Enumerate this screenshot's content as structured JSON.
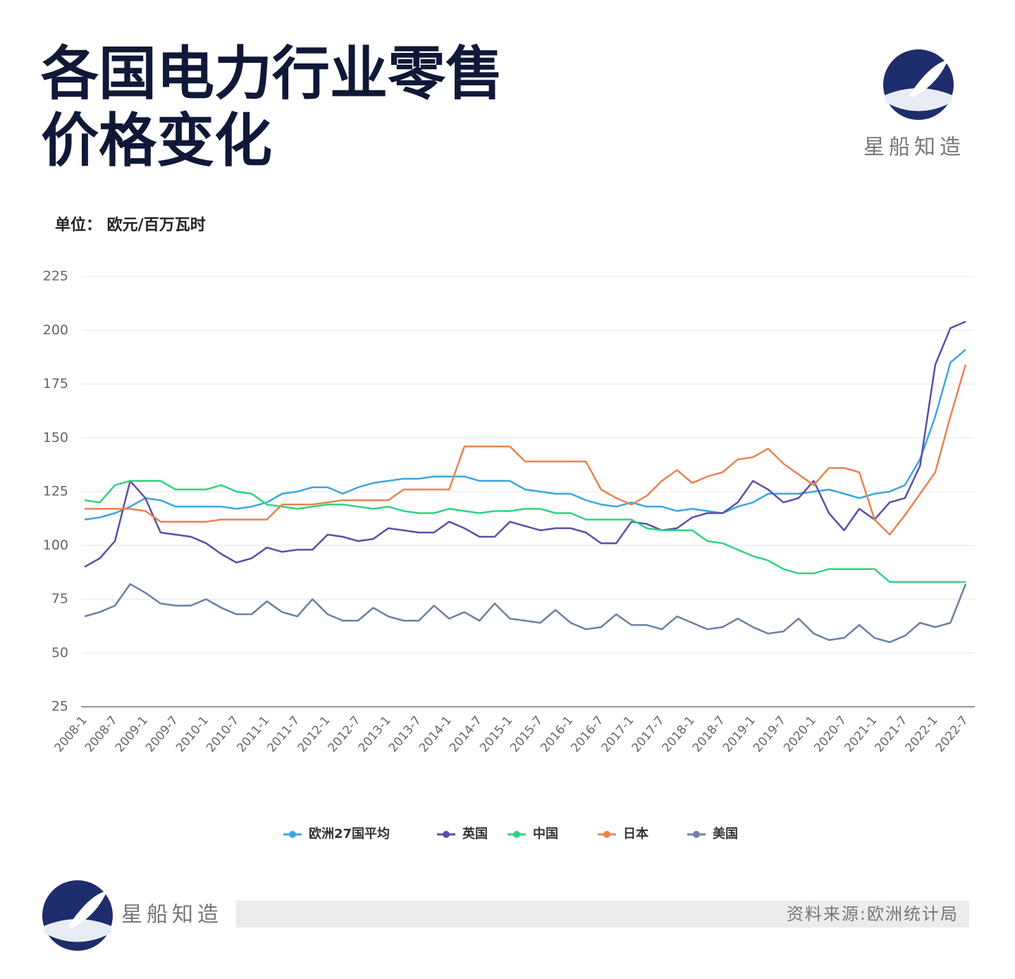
{
  "header": {
    "title_line1": "各国电力行业零售",
    "title_line2": "价格变化",
    "brand": "星船知造"
  },
  "footer": {
    "brand": "星船知造",
    "source": "资料来源:欧洲统计局"
  },
  "chart_data": {
    "type": "line",
    "unit": "单位： 欧元/百万瓦时",
    "categories": [
      "2008-1",
      null,
      "2008-7",
      null,
      "2009-1",
      null,
      "2009-7",
      null,
      "2010-1",
      null,
      "2010-7",
      null,
      "2011-1",
      null,
      "2011-7",
      null,
      "2012-1",
      null,
      "2012-7",
      null,
      "2013-1",
      null,
      "2013-7",
      null,
      "2014-1",
      null,
      "2014-7",
      null,
      "2015-1",
      null,
      "2015-7",
      null,
      "2016-1",
      null,
      "2016-7",
      null,
      "2017-1",
      null,
      "2017-7",
      null,
      "2018-1",
      null,
      "2018-7",
      null,
      "2019-1",
      null,
      "2019-7",
      null,
      "2020-1",
      null,
      "2020-7",
      null,
      "2021-1",
      null,
      "2021-7",
      null,
      "2022-1",
      null,
      "2022-7"
    ],
    "ylim": [
      25,
      225
    ],
    "yticks": [
      25,
      50,
      75,
      100,
      125,
      150,
      175,
      200,
      225
    ],
    "grid": true,
    "series": [
      {
        "name": "欧洲27国平均",
        "color": "#3aa6e0",
        "values": [
          112,
          113,
          115,
          118,
          122,
          121,
          118,
          118,
          118,
          118,
          117,
          118,
          120,
          124,
          125,
          127,
          127,
          124,
          127,
          129,
          130,
          131,
          131,
          132,
          132,
          132,
          130,
          130,
          130,
          126,
          125,
          124,
          124,
          121,
          119,
          118,
          120,
          118,
          118,
          116,
          117,
          116,
          115,
          118,
          120,
          124,
          124,
          124,
          125,
          126,
          124,
          122,
          124,
          125,
          128,
          140,
          160,
          185,
          191
        ]
      },
      {
        "name": "英国",
        "color": "#5a4fa8",
        "values": [
          90,
          94,
          102,
          130,
          122,
          106,
          105,
          104,
          101,
          96,
          92,
          94,
          99,
          97,
          98,
          98,
          105,
          104,
          102,
          103,
          108,
          107,
          106,
          106,
          111,
          108,
          104,
          104,
          111,
          109,
          107,
          108,
          108,
          106,
          101,
          101,
          111,
          110,
          107,
          108,
          113,
          115,
          115,
          120,
          130,
          126,
          120,
          122,
          130,
          115,
          107,
          117,
          112,
          120,
          122,
          137,
          184,
          201,
          204
        ]
      },
      {
        "name": "中国",
        "color": "#2ed47f",
        "values": [
          121,
          120,
          128,
          130,
          130,
          130,
          126,
          126,
          126,
          128,
          125,
          124,
          119,
          118,
          117,
          118,
          119,
          119,
          118,
          117,
          118,
          116,
          115,
          115,
          117,
          116,
          115,
          116,
          116,
          117,
          117,
          115,
          115,
          112,
          112,
          112,
          112,
          108,
          107,
          107,
          107,
          102,
          101,
          98,
          95,
          93,
          89,
          87,
          87,
          89,
          89,
          89,
          89,
          83,
          83,
          83,
          83,
          83,
          83
        ]
      },
      {
        "name": "日本",
        "color": "#e8834f",
        "values": [
          117,
          117,
          117,
          117,
          116,
          111,
          111,
          111,
          111,
          112,
          112,
          112,
          112,
          119,
          119,
          119,
          120,
          121,
          121,
          121,
          121,
          126,
          126,
          126,
          126,
          146,
          146,
          146,
          146,
          139,
          139,
          139,
          139,
          139,
          126,
          122,
          119,
          123,
          130,
          135,
          129,
          132,
          134,
          140,
          141,
          145,
          138,
          133,
          128,
          136,
          136,
          134,
          112,
          105,
          114,
          124,
          134,
          160,
          184
        ]
      },
      {
        "name": "美国",
        "color": "#6b7fa3",
        "values": [
          67,
          69,
          72,
          82,
          78,
          73,
          72,
          72,
          75,
          71,
          68,
          68,
          74,
          69,
          67,
          75,
          68,
          65,
          65,
          71,
          67,
          65,
          65,
          72,
          66,
          69,
          65,
          73,
          66,
          65,
          64,
          70,
          64,
          61,
          62,
          68,
          63,
          63,
          61,
          67,
          64,
          61,
          62,
          66,
          62,
          59,
          60,
          66,
          59,
          56,
          57,
          63,
          57,
          55,
          58,
          64,
          62,
          64,
          82
        ]
      }
    ]
  }
}
